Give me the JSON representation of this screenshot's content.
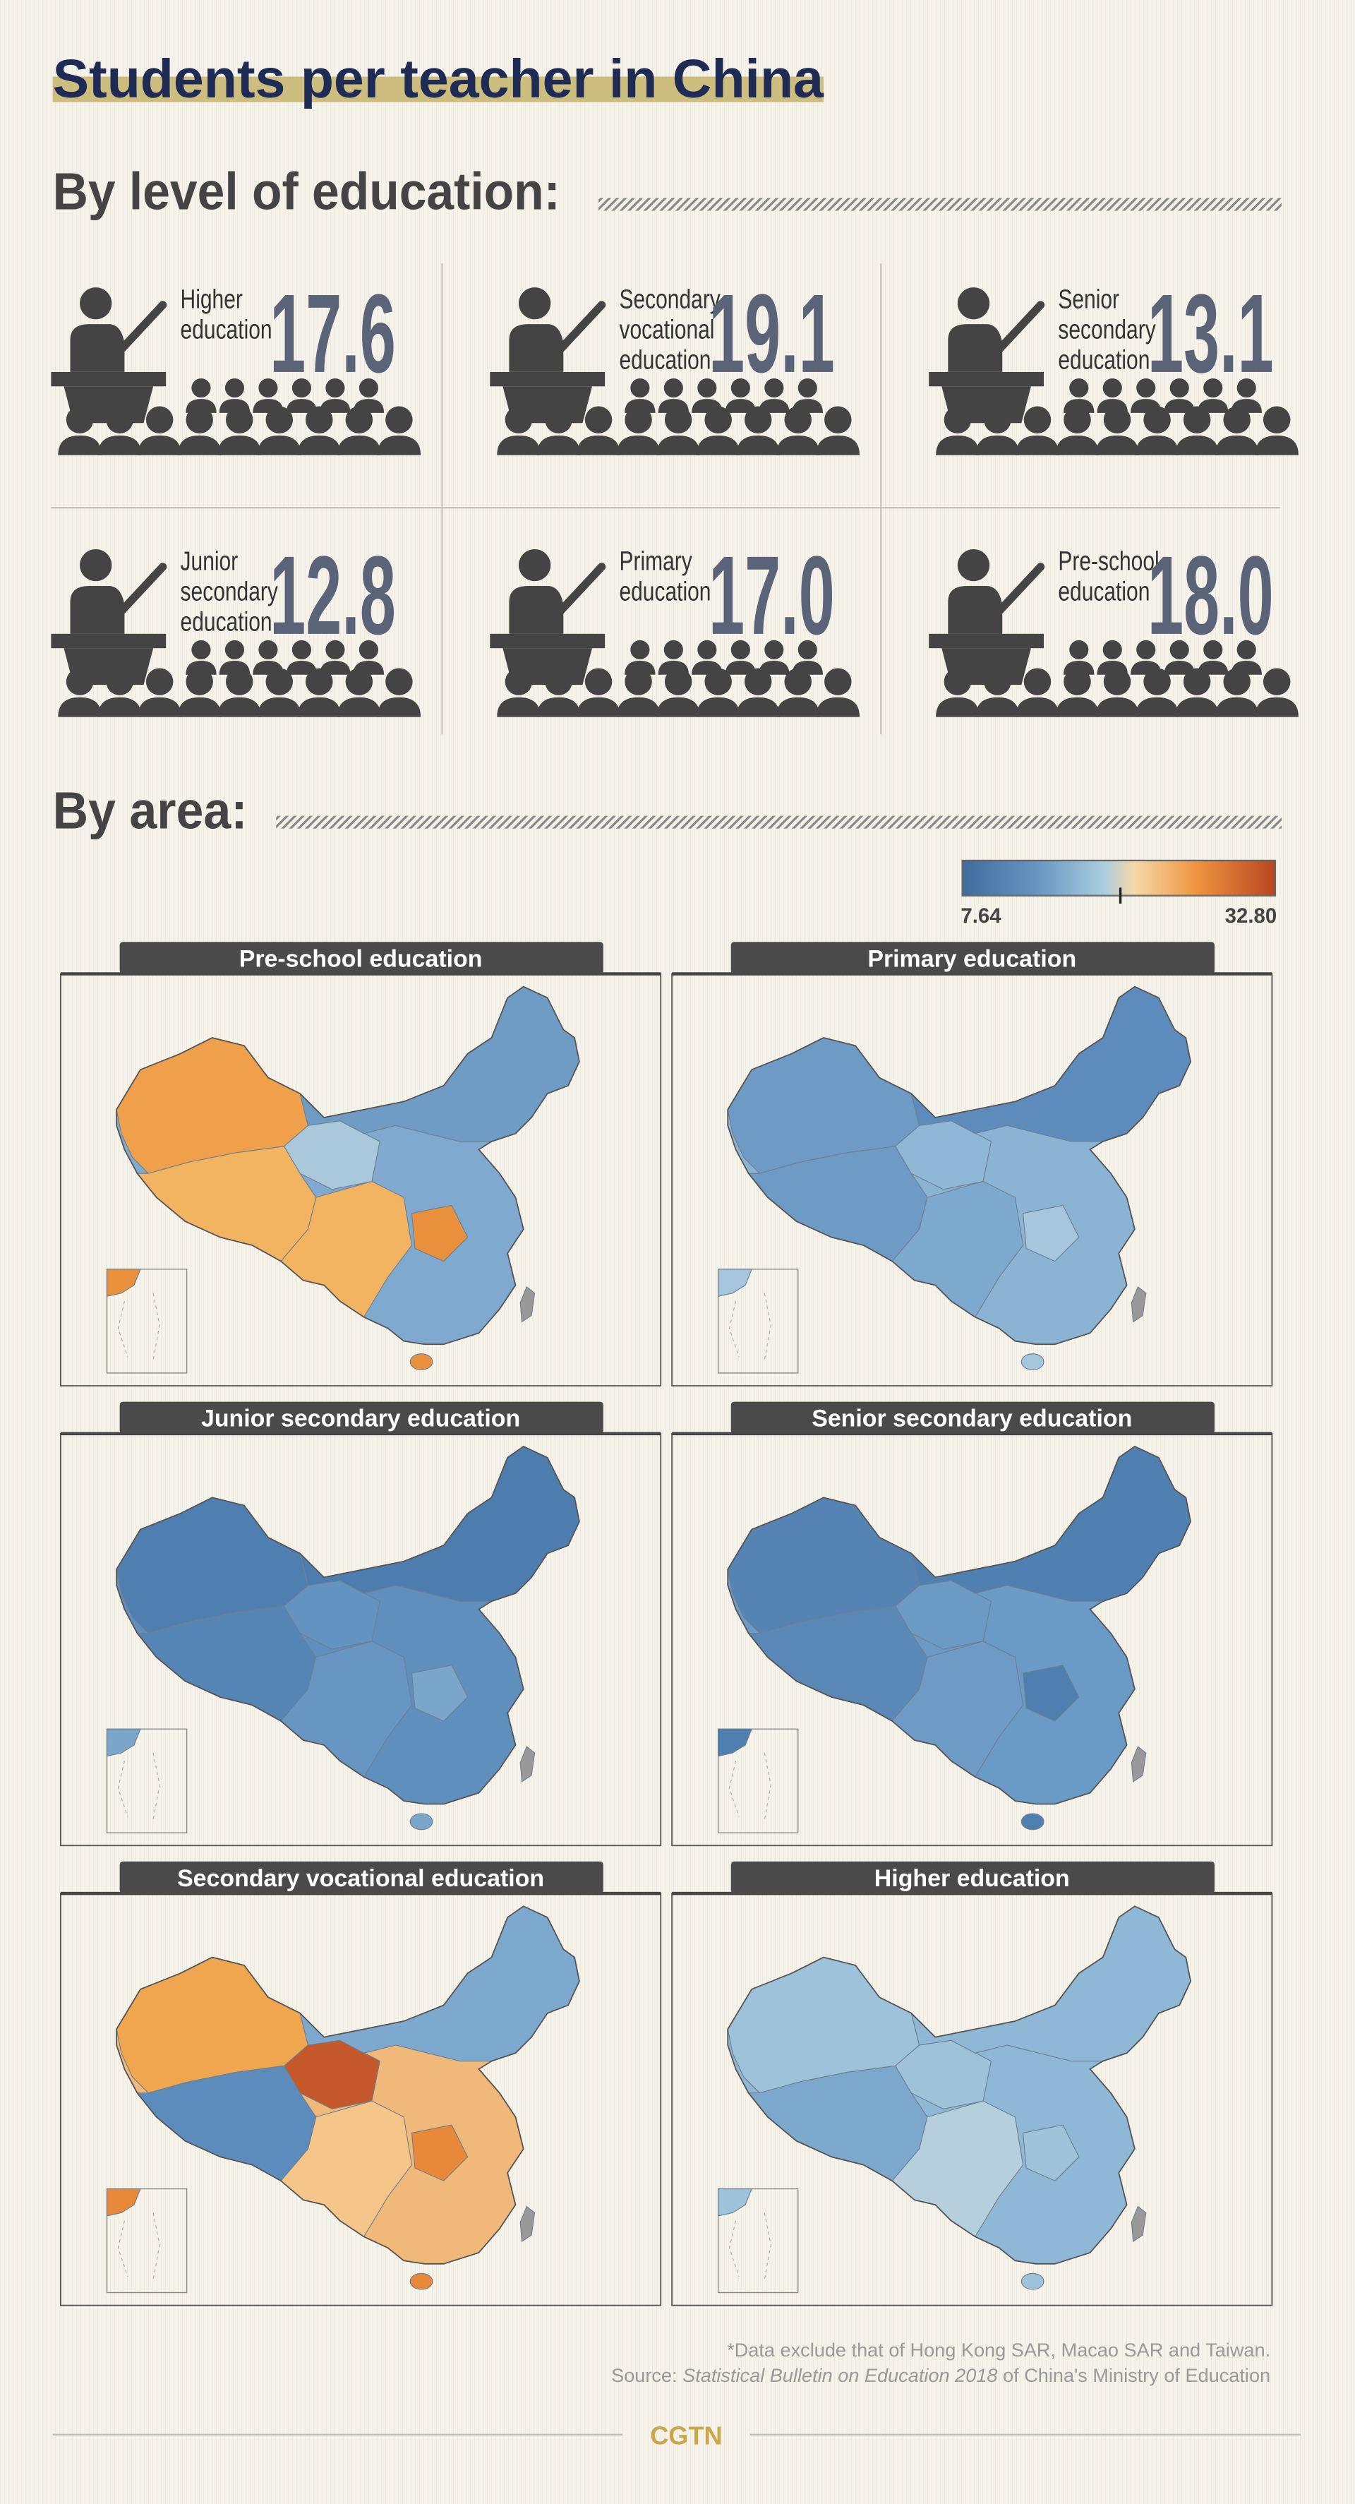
{
  "header": {
    "title": "Students per teacher in China"
  },
  "by_level": {
    "heading": "By level of education:",
    "items": [
      {
        "label": [
          "Higher",
          "education"
        ],
        "value": "17.6"
      },
      {
        "label": [
          "Secondary",
          "vocational",
          "education"
        ],
        "value": "19.1"
      },
      {
        "label": [
          "Senior",
          "secondary",
          "education"
        ],
        "value": "13.1"
      },
      {
        "label": [
          "Junior",
          "secondary",
          "education"
        ],
        "value": "12.8"
      },
      {
        "label": [
          "Primary",
          "education"
        ],
        "value": "17.0"
      },
      {
        "label": [
          "Pre-school",
          "education"
        ],
        "value": "18.0"
      }
    ]
  },
  "by_area": {
    "heading": "By area:",
    "legend": {
      "min": "7.64",
      "max": "32.80"
    },
    "maps": [
      {
        "title": "Pre-school education"
      },
      {
        "title": "Primary education"
      },
      {
        "title": "Junior secondary education"
      },
      {
        "title": "Senior secondary education"
      },
      {
        "title": "Secondary vocational education"
      },
      {
        "title": "Higher education"
      }
    ]
  },
  "footer": {
    "note": "*Data exclude that of Hong Kong SAR, Macao SAR and Taiwan.",
    "source": {
      "prefix": "Source: ",
      "title": "Statistical Bulletin on Education 2018",
      "suffix": " of China's Ministry of Education"
    },
    "brand": "CGTN"
  }
}
